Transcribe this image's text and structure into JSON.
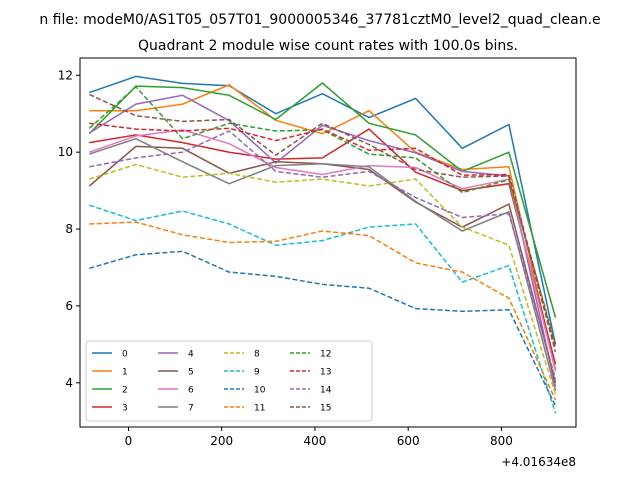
{
  "chart_data": {
    "type": "line",
    "suptitle": "n file: modeM0/AS1T05_057T01_9000005346_37781cztM0_level2_quad_clean.e",
    "title": "Quadrant 2 module wise count rates with 100.0s bins.",
    "xlabel": "",
    "ylabel": "",
    "x_offset_label": "+4.01634e8",
    "x_offset": 401634000,
    "xlim": [
      401633896,
      401634960
    ],
    "ylim": [
      2.85,
      12.45
    ],
    "x_ticks": [
      0,
      200,
      400,
      600,
      800
    ],
    "y_ticks": [
      4,
      6,
      8,
      10,
      12
    ],
    "grid": false,
    "legend": {
      "placement": "lower-left",
      "columns": 4
    },
    "x": [
      401633916,
      401634016,
      401634116,
      401634216,
      401634316,
      401634416,
      401634516,
      401634616,
      401634716,
      401634816,
      401634916
    ],
    "series": [
      {
        "name": "0",
        "color": "#1f77b4",
        "dash": false,
        "values": [
          11.55,
          11.97,
          11.79,
          11.73,
          11.0,
          11.52,
          10.9,
          11.4,
          10.1,
          10.72,
          5.0
        ]
      },
      {
        "name": "1",
        "color": "#ff7f0e",
        "dash": false,
        "values": [
          11.08,
          11.08,
          11.25,
          11.75,
          10.83,
          10.48,
          11.08,
          10.0,
          9.55,
          9.62,
          4.35
        ]
      },
      {
        "name": "2",
        "color": "#2ca02c",
        "dash": false,
        "values": [
          10.48,
          11.72,
          11.68,
          11.48,
          10.85,
          11.8,
          10.75,
          10.45,
          9.5,
          10.0,
          5.7
        ]
      },
      {
        "name": "3",
        "color": "#d62728",
        "dash": false,
        "values": [
          10.25,
          10.45,
          10.25,
          10.0,
          9.82,
          9.85,
          10.6,
          9.48,
          9.0,
          9.18,
          4.48
        ]
      },
      {
        "name": "4",
        "color": "#9467bd",
        "dash": false,
        "values": [
          10.5,
          11.25,
          11.48,
          10.82,
          9.72,
          10.7,
          10.3,
          9.98,
          9.5,
          9.38,
          3.9
        ]
      },
      {
        "name": "5",
        "color": "#8c564b",
        "dash": false,
        "values": [
          9.12,
          10.15,
          10.1,
          9.45,
          9.75,
          9.7,
          9.55,
          8.7,
          8.05,
          8.65,
          4.0
        ]
      },
      {
        "name": "6",
        "color": "#e377c2",
        "dash": false,
        "values": [
          10.0,
          10.42,
          10.58,
          10.22,
          9.6,
          9.42,
          9.65,
          9.6,
          9.05,
          9.3,
          4.3
        ]
      },
      {
        "name": "7",
        "color": "#7f7f7f",
        "dash": false,
        "values": [
          9.95,
          10.35,
          9.75,
          9.18,
          9.65,
          9.7,
          9.62,
          8.72,
          7.95,
          8.45,
          3.8
        ]
      },
      {
        "name": "8",
        "color": "#bcbd22",
        "dash": true,
        "values": [
          9.3,
          9.68,
          9.35,
          9.45,
          9.22,
          9.3,
          9.12,
          9.3,
          8.05,
          7.58,
          3.7
        ]
      },
      {
        "name": "9",
        "color": "#17becf",
        "dash": true,
        "values": [
          8.62,
          8.22,
          8.47,
          8.13,
          7.58,
          7.7,
          8.05,
          8.13,
          6.62,
          7.05,
          3.2
        ]
      },
      {
        "name": "10",
        "color": "#1f77b4",
        "dash": true,
        "values": [
          6.98,
          7.33,
          7.42,
          6.88,
          6.77,
          6.56,
          6.46,
          5.93,
          5.86,
          5.9,
          3.4
        ]
      },
      {
        "name": "11",
        "color": "#ff7f0e",
        "dash": true,
        "values": [
          8.13,
          8.18,
          7.85,
          7.65,
          7.68,
          7.95,
          7.83,
          7.12,
          6.88,
          6.2,
          3.55
        ]
      },
      {
        "name": "12",
        "color": "#2ca02c",
        "dash": true,
        "values": [
          10.62,
          11.7,
          10.35,
          10.75,
          10.55,
          10.58,
          9.95,
          9.85,
          8.95,
          9.28,
          5.0
        ]
      },
      {
        "name": "13",
        "color": "#d62728",
        "dash": true,
        "values": [
          10.75,
          10.6,
          10.55,
          10.62,
          10.3,
          10.6,
          10.05,
          10.1,
          9.4,
          9.42,
          4.9
        ]
      },
      {
        "name": "14",
        "color": "#9467bd",
        "dash": true,
        "values": [
          9.62,
          9.85,
          10.0,
          10.55,
          9.5,
          9.35,
          9.5,
          8.82,
          8.3,
          8.4,
          4.1
        ]
      },
      {
        "name": "15",
        "color": "#8c564b",
        "dash": true,
        "values": [
          11.5,
          10.95,
          10.8,
          10.85,
          9.92,
          10.75,
          10.2,
          9.55,
          9.35,
          9.38,
          4.8
        ]
      }
    ]
  }
}
